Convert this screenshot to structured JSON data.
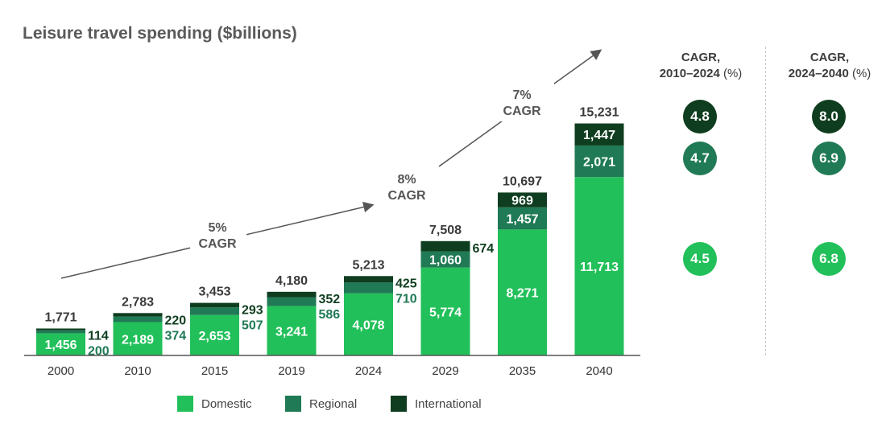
{
  "title": "Leisure travel spending ($billions)",
  "colors": {
    "domestic": "#22c05a",
    "regional": "#1f7a55",
    "international": "#0f3d1f",
    "axis": "#555555",
    "arrow": "#555555"
  },
  "chart_data": {
    "type": "bar",
    "stacked": true,
    "title": "Leisure travel spending ($billions)",
    "categories": [
      "2000",
      "2010",
      "2015",
      "2019",
      "2024",
      "2029",
      "2035",
      "2040"
    ],
    "series": [
      {
        "name": "Domestic",
        "values": [
          1456,
          2189,
          2653,
          3241,
          4078,
          5774,
          8271,
          11713
        ],
        "labels": [
          "1,456",
          "2,189",
          "2,653",
          "3,241",
          "4,078",
          "5,774",
          "8,271",
          "11,713"
        ]
      },
      {
        "name": "Regional",
        "values": [
          200,
          374,
          507,
          586,
          710,
          1060,
          1457,
          2071
        ],
        "labels": [
          "200",
          "374",
          "507",
          "586",
          "710",
          "1,060",
          "1,457",
          "2,071"
        ]
      },
      {
        "name": "International",
        "values": [
          114,
          220,
          293,
          352,
          425,
          674,
          969,
          1447
        ],
        "labels": [
          "114",
          "220",
          "293",
          "352",
          "425",
          "674",
          "969",
          "1,447"
        ]
      }
    ],
    "totals": [
      1771,
      2783,
      3453,
      4180,
      5213,
      7508,
      10697,
      15231
    ],
    "total_labels": [
      "1,771",
      "2,783",
      "3,453",
      "4,180",
      "5,213",
      "7,508",
      "10,697",
      "15,231"
    ],
    "ylim": [
      0,
      16000
    ],
    "grid": false,
    "legend": "bottom",
    "annotations": [
      {
        "text": [
          "5%",
          "CAGR"
        ]
      },
      {
        "text": [
          "8%",
          "CAGR"
        ]
      },
      {
        "text": [
          "7%",
          "CAGR"
        ]
      }
    ]
  },
  "cagr_table": {
    "col1_title": "CAGR,",
    "col1_range": "2010–2024",
    "col2_title": "CAGR,",
    "col2_range": "2024–2040",
    "unit": "(%)",
    "rows": [
      {
        "series": "International",
        "c1": "4.8",
        "c2": "8.0"
      },
      {
        "series": "Regional",
        "c1": "4.7",
        "c2": "6.9"
      },
      {
        "series": "Domestic",
        "c1": "4.5",
        "c2": "6.8"
      }
    ]
  },
  "legend": {
    "domestic": "Domestic",
    "regional": "Regional",
    "international": "International"
  }
}
